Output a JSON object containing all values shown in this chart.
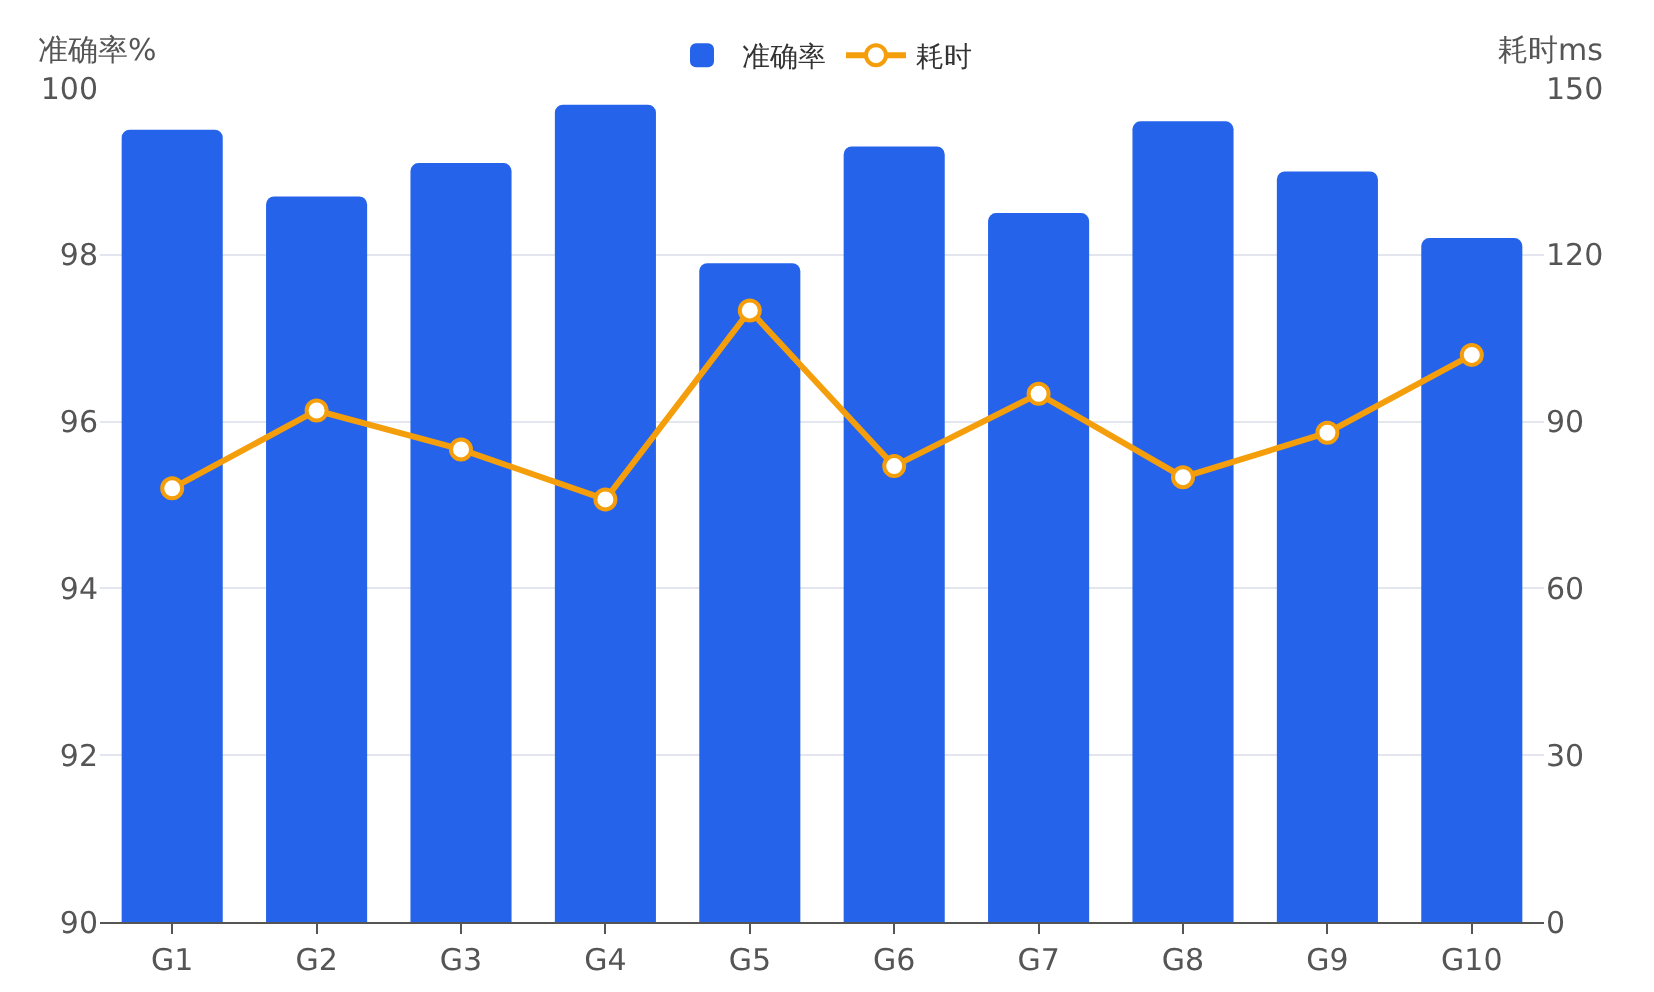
{
  "chart_data": {
    "type": "bar",
    "categories": [
      "G1",
      "G2",
      "G3",
      "G4",
      "G5",
      "G6",
      "G7",
      "G8",
      "G9",
      "G10"
    ],
    "series": [
      {
        "name": "准确率",
        "color": "#2563eb",
        "values": [
          99.5,
          98.7,
          99.1,
          99.8,
          97.9,
          99.3,
          98.5,
          99.6,
          99.0,
          98.2
        ]
      },
      {
        "name": "耗时",
        "type": "line",
        "axis": "y2",
        "color": "#f59e0b",
        "values": [
          78,
          92,
          85,
          76,
          110,
          82,
          95,
          80,
          88,
          102
        ]
      }
    ],
    "ylabel": "准确率%",
    "y2label": "耗时ms",
    "ylim": [
      90,
      100
    ],
    "yticks": [
      90,
      92,
      94,
      96,
      98,
      100
    ],
    "y2lim": [
      0,
      150
    ],
    "y2ticks": [
      0,
      30,
      60,
      90,
      120,
      150
    ],
    "grid": "y",
    "legend": "top",
    "marker": "circle",
    "line_style": "solid"
  }
}
